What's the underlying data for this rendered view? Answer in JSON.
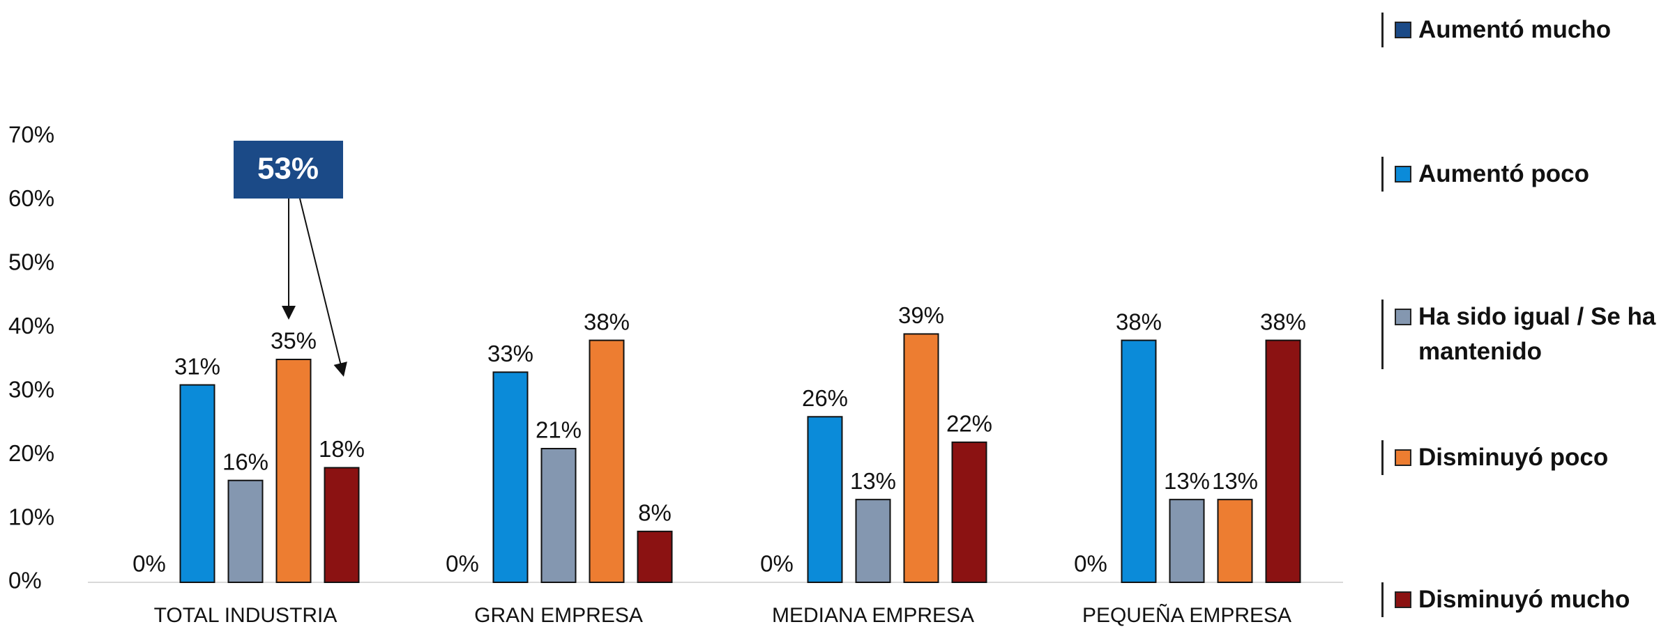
{
  "chart_data": {
    "type": "bar",
    "categories": [
      "TOTAL INDUSTRIA",
      "GRAN EMPRESA",
      "MEDIANA EMPRESA",
      "PEQUEÑA EMPRESA"
    ],
    "series": [
      {
        "name": "Aumentó mucho",
        "color": "#1b4a87",
        "values": [
          0,
          0,
          0,
          0
        ],
        "value_labels": [
          "0%",
          "0%",
          "0%",
          "0%"
        ]
      },
      {
        "name": "Aumentó poco",
        "color": "#0b8bd9",
        "values": [
          31,
          33,
          26,
          38
        ],
        "value_labels": [
          "31%",
          "33%",
          "26%",
          "38%"
        ]
      },
      {
        "name": "Ha sido igual / Se ha mantenido",
        "color": "#8497b0",
        "values": [
          16,
          21,
          13,
          13
        ],
        "value_labels": [
          "16%",
          "21%",
          "13%",
          "13%"
        ]
      },
      {
        "name": "Disminuyó poco",
        "color": "#ed7d31",
        "values": [
          35,
          38,
          39,
          13
        ],
        "value_labels": [
          "35%",
          "38%",
          "39%",
          "13%"
        ]
      },
      {
        "name": "Disminuyó mucho",
        "color": "#8b1212",
        "values": [
          18,
          8,
          22,
          38
        ],
        "value_labels": [
          "18%",
          "8%",
          "22%",
          "38%"
        ]
      }
    ],
    "ylim": [
      0,
      70
    ],
    "yticks": [
      {
        "value": 0,
        "label": "0%"
      },
      {
        "value": 10,
        "label": "10%"
      },
      {
        "value": 20,
        "label": "20%"
      },
      {
        "value": 30,
        "label": "30%"
      },
      {
        "value": 40,
        "label": "40%"
      },
      {
        "value": 50,
        "label": "50%"
      },
      {
        "value": 60,
        "label": "60%"
      },
      {
        "value": 70,
        "label": "70%"
      }
    ],
    "annotation": "53%",
    "legend": "right"
  }
}
